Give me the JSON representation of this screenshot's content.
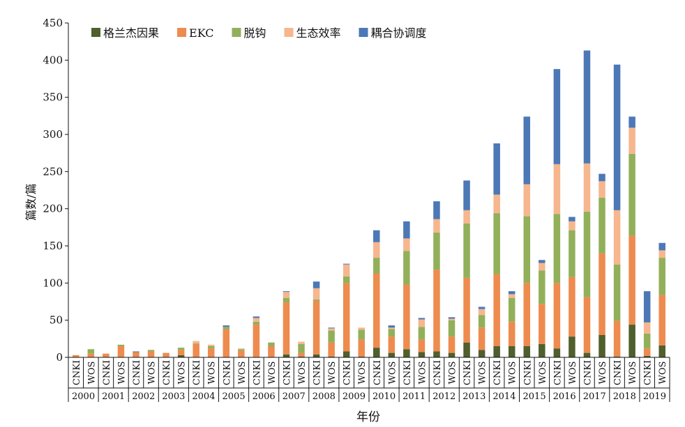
{
  "chart_data": {
    "type": "bar",
    "stacked": true,
    "title": "",
    "xlabel": "年份",
    "ylabel": "篇数/篇",
    "ylim": [
      0,
      450
    ],
    "yticks": [
      0,
      50,
      100,
      150,
      200,
      250,
      300,
      350,
      400,
      450
    ],
    "legend_position": "top",
    "years": [
      "2000",
      "2001",
      "2002",
      "2003",
      "2004",
      "2005",
      "2006",
      "2007",
      "2008",
      "2009",
      "2010",
      "2011",
      "2012",
      "2013",
      "2014",
      "2015",
      "2016",
      "2017",
      "2018",
      "2019"
    ],
    "sources": [
      "CNKI",
      "WOS"
    ],
    "categories": [
      "2000 CNKI",
      "2000 WOS",
      "2001 CNKI",
      "2001 WOS",
      "2002 CNKI",
      "2002 WOS",
      "2003 CNKI",
      "2003 WOS",
      "2004 CNKI",
      "2004 WOS",
      "2005 CNKI",
      "2005 WOS",
      "2006 CNKI",
      "2006 WOS",
      "2007 CNKI",
      "2007 WOS",
      "2008 CNKI",
      "2008 WOS",
      "2009 CNKI",
      "2009 WOS",
      "2010 CNKI",
      "2010 WOS",
      "2011 CNKI",
      "2011 WOS",
      "2012 CNKI",
      "2012 WOS",
      "2013 CNKI",
      "2013 WOS",
      "2014 CNKI",
      "2014 WOS",
      "2015 CNKI",
      "2015 WOS",
      "2016 CNKI",
      "2016 WOS",
      "2017 CNKI",
      "2017 WOS",
      "2018 CNKI",
      "2018 WOS",
      "2019 CNKI",
      "2019 WOS"
    ],
    "series": [
      {
        "name": "格兰杰因果",
        "color": "#4f5f2d",
        "values": [
          0,
          0,
          0,
          0,
          0,
          0,
          0,
          3,
          0,
          0,
          0,
          0,
          0,
          0,
          4,
          1,
          4,
          1,
          8,
          1,
          13,
          6,
          11,
          7,
          8,
          6,
          20,
          10,
          15,
          15,
          15,
          18,
          12,
          28,
          6,
          30,
          1,
          44,
          2,
          16
        ]
      },
      {
        "name": "EKC",
        "color": "#ee8b4f",
        "values": [
          3,
          5,
          5,
          15,
          7,
          8,
          6,
          7,
          18,
          12,
          38,
          9,
          44,
          15,
          70,
          5,
          72,
          19,
          92,
          23,
          100,
          22,
          87,
          17,
          110,
          22,
          87,
          30,
          97,
          33,
          85,
          54,
          88,
          80,
          75,
          110,
          48,
          120,
          10,
          68
        ]
      },
      {
        "name": "脱钩",
        "color": "#92b05a",
        "values": [
          0,
          6,
          0,
          2,
          0,
          2,
          0,
          3,
          1,
          3,
          3,
          2,
          4,
          5,
          6,
          12,
          2,
          16,
          9,
          13,
          21,
          10,
          45,
          17,
          50,
          22,
          73,
          17,
          82,
          32,
          90,
          45,
          93,
          63,
          115,
          75,
          76,
          110,
          20,
          50
        ]
      },
      {
        "name": "生态效率",
        "color": "#f6b68e",
        "values": [
          0,
          0,
          0,
          0,
          0,
          0,
          0,
          0,
          3,
          2,
          0,
          1,
          5,
          0,
          8,
          3,
          15,
          3,
          16,
          3,
          21,
          2,
          17,
          10,
          18,
          2,
          18,
          8,
          25,
          5,
          43,
          10,
          67,
          12,
          65,
          22,
          73,
          35,
          15,
          10
        ]
      },
      {
        "name": "耦合协调度",
        "color": "#4c78b6",
        "values": [
          0,
          0,
          0,
          0,
          1,
          0,
          0,
          0,
          0,
          0,
          2,
          0,
          2,
          0,
          1,
          0,
          9,
          1,
          1,
          0,
          16,
          3,
          23,
          2,
          24,
          2,
          40,
          3,
          69,
          4,
          91,
          4,
          128,
          6,
          152,
          10,
          196,
          15,
          42,
          10
        ]
      }
    ]
  }
}
